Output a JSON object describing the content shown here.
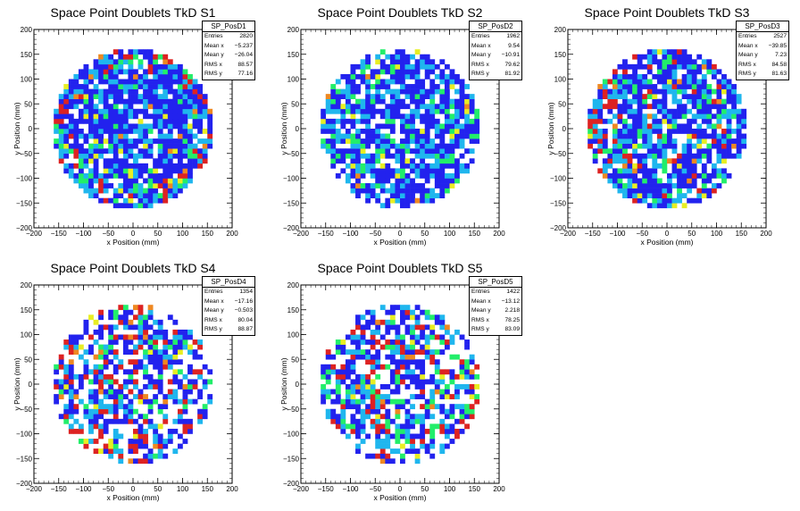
{
  "colors": {
    "palette": [
      "#2222ee",
      "#1fb6ee",
      "#22ee6a",
      "#e8ee22",
      "#ee8822",
      "#dd2222"
    ],
    "frame": "#000000",
    "background": "#ffffff"
  },
  "chart_data": [
    {
      "type": "heatmap",
      "title": "Space Point Doublets TkD S1",
      "xlabel": "x Position (mm)",
      "ylabel": "y Position (mm)",
      "xlim": [
        -200,
        200
      ],
      "ylim": [
        -200,
        200
      ],
      "xticks": [
        "−200",
        "−150",
        "−100",
        "−50",
        "0",
        "50",
        "100",
        "150",
        "200"
      ],
      "yticks": [
        "−200",
        "−150",
        "−100",
        "−50",
        "0",
        "50",
        "100",
        "150",
        "200"
      ],
      "disk_radius": 160,
      "bin_size": 10,
      "grid": false,
      "legend_position": "top-right",
      "stats": {
        "name": "SP_PosD1",
        "rows": [
          {
            "label": "Entries",
            "value": "2820"
          },
          {
            "label": "Mean x",
            "value": "−5.237"
          },
          {
            "label": "Mean y",
            "value": "−26.04"
          },
          {
            "label": "RMS x",
            "value": "88.57"
          },
          {
            "label": "RMS y",
            "value": "77.16"
          }
        ]
      }
    },
    {
      "type": "heatmap",
      "title": "Space Point Doublets TkD S2",
      "xlabel": "x Position (mm)",
      "ylabel": "y Position (mm)",
      "xlim": [
        -200,
        200
      ],
      "ylim": [
        -200,
        200
      ],
      "xticks": [
        "−200",
        "−150",
        "−100",
        "−50",
        "0",
        "50",
        "100",
        "150",
        "200"
      ],
      "yticks": [
        "−200",
        "−150",
        "−100",
        "−50",
        "0",
        "50",
        "100",
        "150",
        "200"
      ],
      "disk_radius": 160,
      "bin_size": 10,
      "grid": false,
      "legend_position": "top-right",
      "stats": {
        "name": "SP_PosD2",
        "rows": [
          {
            "label": "Entries",
            "value": "1962"
          },
          {
            "label": "Mean x",
            "value": "9.54"
          },
          {
            "label": "Mean y",
            "value": "−10.91"
          },
          {
            "label": "RMS x",
            "value": "79.62"
          },
          {
            "label": "RMS y",
            "value": "81.92"
          }
        ]
      }
    },
    {
      "type": "heatmap",
      "title": "Space Point Doublets TkD S3",
      "xlabel": "x Position (mm)",
      "ylabel": "y Position (mm)",
      "xlim": [
        -200,
        200
      ],
      "ylim": [
        -200,
        200
      ],
      "xticks": [
        "−200",
        "−150",
        "−100",
        "−50",
        "0",
        "50",
        "100",
        "150",
        "200"
      ],
      "yticks": [
        "−200",
        "−150",
        "−100",
        "−50",
        "0",
        "50",
        "100",
        "150",
        "200"
      ],
      "disk_radius": 160,
      "bin_size": 10,
      "grid": false,
      "legend_position": "top-right",
      "stats": {
        "name": "SP_PosD3",
        "rows": [
          {
            "label": "Entries",
            "value": "2527"
          },
          {
            "label": "Mean x",
            "value": "−39.85"
          },
          {
            "label": "Mean y",
            "value": "7.23"
          },
          {
            "label": "RMS x",
            "value": "84.58"
          },
          {
            "label": "RMS y",
            "value": "81.63"
          }
        ]
      }
    },
    {
      "type": "heatmap",
      "title": "Space Point Doublets TkD S4",
      "xlabel": "x Position (mm)",
      "ylabel": "y Position (mm)",
      "xlim": [
        -200,
        200
      ],
      "ylim": [
        -200,
        200
      ],
      "xticks": [
        "−200",
        "−150",
        "−100",
        "−50",
        "0",
        "50",
        "100",
        "150",
        "200"
      ],
      "yticks": [
        "−200",
        "−150",
        "−100",
        "−50",
        "0",
        "50",
        "100",
        "150",
        "200"
      ],
      "disk_radius": 160,
      "bin_size": 10,
      "grid": false,
      "legend_position": "top-right",
      "stats": {
        "name": "SP_PosD4",
        "rows": [
          {
            "label": "Entries",
            "value": "1354"
          },
          {
            "label": "Mean x",
            "value": "−17.16"
          },
          {
            "label": "Mean y",
            "value": "−0.503"
          },
          {
            "label": "RMS x",
            "value": "80.04"
          },
          {
            "label": "RMS y",
            "value": "88.87"
          }
        ]
      }
    },
    {
      "type": "heatmap",
      "title": "Space Point Doublets TkD S5",
      "xlabel": "x Position (mm)",
      "ylabel": "y Position (mm)",
      "xlim": [
        -200,
        200
      ],
      "ylim": [
        -200,
        200
      ],
      "xticks": [
        "−200",
        "−150",
        "−100",
        "−50",
        "0",
        "50",
        "100",
        "150",
        "200"
      ],
      "yticks": [
        "−200",
        "−150",
        "−100",
        "−50",
        "0",
        "50",
        "100",
        "150",
        "200"
      ],
      "disk_radius": 160,
      "bin_size": 10,
      "grid": false,
      "legend_position": "top-right",
      "stats": {
        "name": "SP_PosD5",
        "rows": [
          {
            "label": "Entries",
            "value": "1422"
          },
          {
            "label": "Mean x",
            "value": "−13.12"
          },
          {
            "label": "Mean y",
            "value": "2.218"
          },
          {
            "label": "RMS x",
            "value": "78.25"
          },
          {
            "label": "RMS y",
            "value": "83.09"
          }
        ]
      }
    }
  ]
}
